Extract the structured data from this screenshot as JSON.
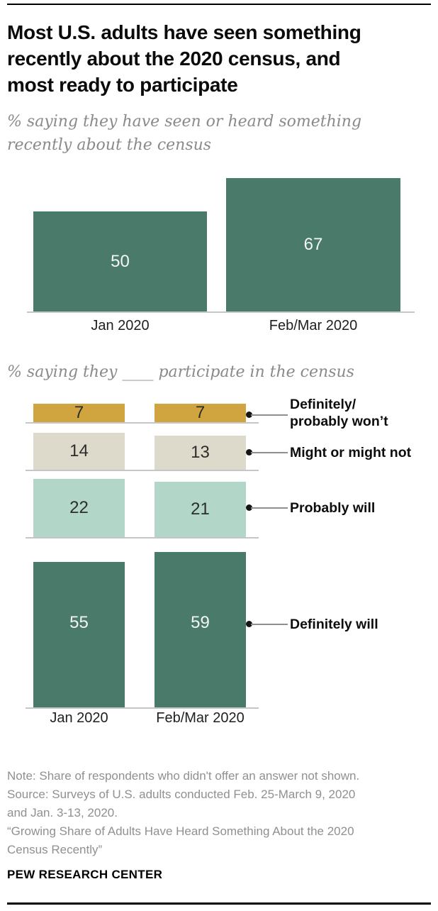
{
  "header": {
    "title": "Most U.S. adults have seen something recently about the 2020 census, and most ready to participate",
    "title_lines": [
      "Most U.S. adults have seen something",
      "recently about the 2020 census, and",
      "most ready to participate"
    ]
  },
  "chart_data": [
    {
      "type": "bar",
      "subtitle": "% saying they have seen or heard something recently about the census",
      "subtitle_lines": [
        "% saying they have seen or heard something",
        "recently about the census"
      ],
      "categories": [
        "Jan 2020",
        "Feb/Mar 2020"
      ],
      "values": [
        50,
        67
      ],
      "ylim": [
        0,
        70
      ],
      "grid": false,
      "bar_color": "#4a7a6a",
      "value_label_color": "#f3f6f4"
    },
    {
      "type": "bar",
      "subtitle": "% saying they ____ participate in the census",
      "categories": [
        "Jan 2020",
        "Feb/Mar 2020"
      ],
      "series": [
        {
          "name": "Definitely/probably won’t",
          "name_lines": [
            "Definitely/",
            "probably won’t"
          ],
          "values": [
            7,
            7
          ],
          "color": "#d0a43e"
        },
        {
          "name": "Might or might not",
          "name_lines": [
            "Might or might not"
          ],
          "values": [
            14,
            13
          ],
          "color": "#dedacb"
        },
        {
          "name": "Probably will",
          "name_lines": [
            "Probably will"
          ],
          "values": [
            22,
            21
          ],
          "color": "#b2d7c9"
        },
        {
          "name": "Definitely will",
          "name_lines": [
            "Definitely will"
          ],
          "values": [
            55,
            59
          ],
          "color": "#4a7a6a"
        }
      ],
      "legend_position": "right",
      "grid": false
    }
  ],
  "footer": {
    "note_lines": [
      "Note: Share of respondents who didn't offer an answer not shown.",
      "Source: Surveys of U.S. adults conducted Feb. 25-March 9, 2020",
      "and Jan. 3-13, 2020.",
      "“Growing Share of Adults Have Heard Something About the 2020",
      "Census Recently”"
    ],
    "brand": "PEW RESEARCH CENTER"
  },
  "colors": {
    "dark_teal": "#4a7a6a",
    "gold": "#d0a43e",
    "beige": "#dedacb",
    "light_teal": "#b2d7c9",
    "axis_gray": "#c6c6c6",
    "leader_gray": "#8f8f8f",
    "note_gray": "#909090",
    "rule_black": "#000000"
  }
}
